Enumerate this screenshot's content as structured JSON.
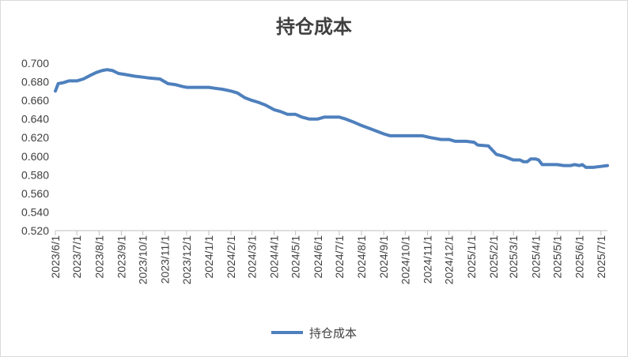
{
  "chart_data": {
    "type": "line",
    "title": "持仓成本",
    "xlabel": "",
    "ylabel": "",
    "ylim": [
      0.52,
      0.7
    ],
    "yticks": [
      "0.700",
      "0.680",
      "0.660",
      "0.640",
      "0.620",
      "0.600",
      "0.580",
      "0.560",
      "0.540",
      "0.520"
    ],
    "x_tick_labels": [
      "2023/6/1",
      "2023/7/1",
      "2023/8/1",
      "2023/9/1",
      "2023/10/1",
      "2023/11/1",
      "2023/12/1",
      "2024/1/1",
      "2024/2/1",
      "2024/3/1",
      "2024/4/1",
      "2024/5/1",
      "2024/6/1",
      "2024/7/1",
      "2024/8/1",
      "2024/9/1",
      "2024/10/1",
      "2024/11/1",
      "2024/12/1",
      "2025/1/1",
      "2025/2/1",
      "2025/3/1",
      "2025/4/1",
      "2025/5/1",
      "2025/6/1",
      "2025/7/1"
    ],
    "grid": false,
    "legend_position": "bottom",
    "series": [
      {
        "name": "持仓成本",
        "color": "#4e80bd",
        "points": [
          [
            "2023/6/1",
            0.67
          ],
          [
            "2023/6/5",
            0.678
          ],
          [
            "2023/6/12",
            0.679
          ],
          [
            "2023/6/20",
            0.681
          ],
          [
            "2023/7/1",
            0.681
          ],
          [
            "2023/7/10",
            0.683
          ],
          [
            "2023/7/20",
            0.687
          ],
          [
            "2023/7/28",
            0.69
          ],
          [
            "2023/8/5",
            0.692
          ],
          [
            "2023/8/12",
            0.693
          ],
          [
            "2023/8/20",
            0.692
          ],
          [
            "2023/8/28",
            0.689
          ],
          [
            "2023/9/5",
            0.688
          ],
          [
            "2023/9/20",
            0.686
          ],
          [
            "2023/10/1",
            0.685
          ],
          [
            "2023/10/10",
            0.684
          ],
          [
            "2023/10/25",
            0.683
          ],
          [
            "2023/11/5",
            0.678
          ],
          [
            "2023/11/15",
            0.677
          ],
          [
            "2023/11/25",
            0.675
          ],
          [
            "2023/12/1",
            0.674
          ],
          [
            "2023/12/15",
            0.674
          ],
          [
            "2024/1/1",
            0.674
          ],
          [
            "2024/1/10",
            0.673
          ],
          [
            "2024/1/20",
            0.672
          ],
          [
            "2024/2/1",
            0.67
          ],
          [
            "2024/2/10",
            0.668
          ],
          [
            "2024/2/20",
            0.663
          ],
          [
            "2024/3/1",
            0.66
          ],
          [
            "2024/3/10",
            0.658
          ],
          [
            "2024/3/20",
            0.655
          ],
          [
            "2024/4/1",
            0.65
          ],
          [
            "2024/4/10",
            0.648
          ],
          [
            "2024/4/20",
            0.645
          ],
          [
            "2024/5/1",
            0.645
          ],
          [
            "2024/5/10",
            0.642
          ],
          [
            "2024/5/20",
            0.64
          ],
          [
            "2024/6/1",
            0.64
          ],
          [
            "2024/6/10",
            0.642
          ],
          [
            "2024/6/20",
            0.642
          ],
          [
            "2024/7/1",
            0.642
          ],
          [
            "2024/7/10",
            0.64
          ],
          [
            "2024/7/20",
            0.637
          ],
          [
            "2024/8/1",
            0.633
          ],
          [
            "2024/8/15",
            0.629
          ],
          [
            "2024/9/1",
            0.624
          ],
          [
            "2024/9/10",
            0.622
          ],
          [
            "2024/9/25",
            0.622
          ],
          [
            "2024/10/10",
            0.622
          ],
          [
            "2024/10/25",
            0.622
          ],
          [
            "2024/11/5",
            0.62
          ],
          [
            "2024/11/20",
            0.618
          ],
          [
            "2024/12/1",
            0.618
          ],
          [
            "2024/12/10",
            0.616
          ],
          [
            "2024/12/25",
            0.616
          ],
          [
            "2025/1/5",
            0.615
          ],
          [
            "2025/1/10",
            0.612
          ],
          [
            "2025/1/25",
            0.611
          ],
          [
            "2025/2/5",
            0.602
          ],
          [
            "2025/2/15",
            0.6
          ],
          [
            "2025/2/25",
            0.597
          ],
          [
            "2025/3/1",
            0.596
          ],
          [
            "2025/3/10",
            0.596
          ],
          [
            "2025/3/15",
            0.594
          ],
          [
            "2025/3/20",
            0.594
          ],
          [
            "2025/3/25",
            0.597
          ],
          [
            "2025/4/1",
            0.597
          ],
          [
            "2025/4/5",
            0.596
          ],
          [
            "2025/4/10",
            0.591
          ],
          [
            "2025/4/20",
            0.591
          ],
          [
            "2025/5/1",
            0.591
          ],
          [
            "2025/5/10",
            0.59
          ],
          [
            "2025/5/20",
            0.59
          ],
          [
            "2025/5/25",
            0.591
          ],
          [
            "2025/6/1",
            0.59
          ],
          [
            "2025/6/5",
            0.591
          ],
          [
            "2025/6/10",
            0.588
          ],
          [
            "2025/6/20",
            0.588
          ],
          [
            "2025/7/1",
            0.589
          ],
          [
            "2025/7/10",
            0.59
          ]
        ]
      }
    ]
  }
}
